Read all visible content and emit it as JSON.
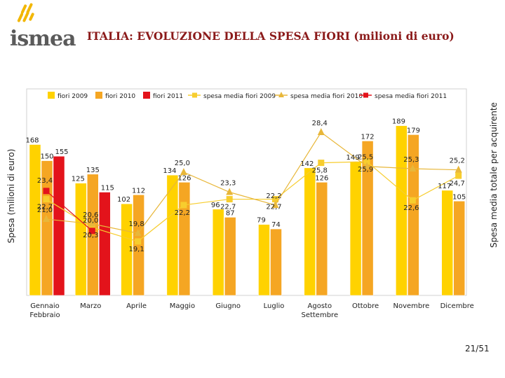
{
  "header": {
    "logo_text": "ismea",
    "title": "ITALIA: EVOLUZIONE DELLA SPESA FIORI (milioni di euro)"
  },
  "footer": {
    "page": "21/51"
  },
  "chart_data": {
    "type": "bar",
    "title": "ITALIA: EVOLUZIONE DELLA SPESA FIORI (milioni di euro)",
    "ylabel": "Spesa (milioni di euro)",
    "y2label": "Spesa media totale per acquirente",
    "categories": [
      "Gennaio Febbraio",
      "Marzo",
      "Aprile",
      "Maggio",
      "Giugno",
      "Luglio",
      "Agosto Settembre",
      "Ottobre",
      "Novembre",
      "Dicembre"
    ],
    "category_lines": [
      [
        "Gennaio",
        "Febbraio"
      ],
      [
        "Marzo"
      ],
      [
        "Aprile"
      ],
      [
        "Maggio"
      ],
      [
        "Giugno"
      ],
      [
        "Luglio"
      ],
      [
        "Agosto",
        "Settembre"
      ],
      [
        "Ottobre"
      ],
      [
        "Novembre"
      ],
      [
        "Dicembre"
      ]
    ],
    "ylim": [
      0,
      230
    ],
    "y2lim": [
      14.5,
      32.1
    ],
    "series": [
      {
        "name": "fiori 2009",
        "type": "bar",
        "color": "#FFD200",
        "values": [
          168,
          125,
          102,
          134,
          96,
          79,
          142,
          149,
          189,
          117
        ]
      },
      {
        "name": "fiori 2010",
        "type": "bar",
        "color": "#F5A623",
        "values": [
          150,
          135,
          112,
          126,
          87,
          74,
          126,
          172,
          179,
          105
        ]
      },
      {
        "name": "fiori 2011",
        "type": "bar",
        "color": "#E3131B",
        "values": [
          155,
          115,
          null,
          null,
          null,
          null,
          null,
          null,
          null,
          null
        ]
      },
      {
        "name": "spesa media fiori 2009",
        "type": "line",
        "color": "#F7CD2E",
        "marker": "square",
        "values": [
          22.7,
          20.3,
          19.1,
          22.2,
          22.7,
          22.7,
          25.8,
          25.9,
          22.6,
          24.7
        ],
        "labels": [
          "22,7",
          "20,3",
          "19,1",
          "22,2",
          "22,7",
          "22,7",
          "25,8",
          "25,9",
          "22,6",
          "24,7"
        ]
      },
      {
        "name": "spesa media fiori 2010",
        "type": "line",
        "color": "#E8B73A",
        "marker": "triangle",
        "values": [
          21.0,
          20.6,
          19.8,
          25.0,
          23.3,
          22.2,
          28.4,
          25.5,
          25.3,
          25.2
        ],
        "labels": [
          "21,0",
          "20,6",
          "19,8",
          "25,0",
          "23,3",
          "22,2",
          "28,4",
          "25,5",
          "25,3",
          "25,2"
        ]
      },
      {
        "name": "spesa media fiori 2011",
        "type": "line",
        "color": "#E3131B",
        "marker": "square",
        "values": [
          23.4,
          20.0,
          null,
          null,
          null,
          null,
          null,
          null,
          null,
          null
        ],
        "labels": [
          "23,4",
          "20,0",
          "",
          "",
          "",
          "",
          "",
          "",
          "",
          ""
        ]
      }
    ],
    "legend": [
      "fiori 2009",
      "fiori 2010",
      "fiori 2011",
      "spesa media fiori 2009",
      "spesa media fiori 2010",
      "spesa media fiori 2011"
    ],
    "legend_position": "top"
  }
}
